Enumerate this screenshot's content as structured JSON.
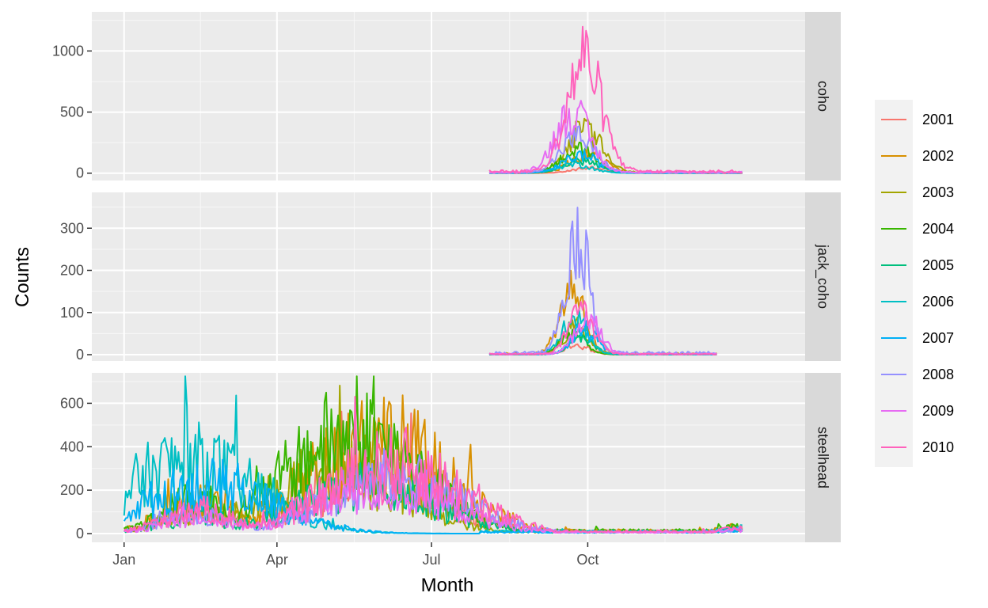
{
  "chart_data": {
    "type": "line",
    "xlabel": "Month",
    "ylabel": "Counts",
    "x_ticks": [
      {
        "label": "Jan",
        "day": 1
      },
      {
        "label": "Apr",
        "day": 91
      },
      {
        "label": "Jul",
        "day": 182
      },
      {
        "label": "Oct",
        "day": 274
      }
    ],
    "xlim_day": [
      -18,
      402
    ],
    "legend": {
      "placement": "right",
      "entries": [
        "2001",
        "2002",
        "2003",
        "2004",
        "2005",
        "2006",
        "2007",
        "2008",
        "2009",
        "2010"
      ],
      "colors": [
        "#F8766D",
        "#D89000",
        "#A3A500",
        "#39B600",
        "#00BF7D",
        "#00BFC4",
        "#00B0F6",
        "#9590FF",
        "#E76BF3",
        "#FF62BC"
      ]
    },
    "grid": true,
    "panels": [
      {
        "name": "coho",
        "ylim": [
          -60,
          1320
        ],
        "y_ticks": [
          0,
          500,
          1000
        ],
        "season": [
          216,
          365
        ],
        "peaks": [
          {
            "year": "2001",
            "day": 276,
            "height": 60
          },
          {
            "year": "2002",
            "day": 274,
            "height": 220
          },
          {
            "year": "2003",
            "day": 272,
            "height": 480
          },
          {
            "year": "2004",
            "day": 268,
            "height": 260
          },
          {
            "year": "2005",
            "day": 270,
            "height": 140
          },
          {
            "year": "2006",
            "day": 266,
            "height": 100
          },
          {
            "year": "2007",
            "day": 270,
            "height": 200
          },
          {
            "year": "2008",
            "day": 268,
            "height": 400
          },
          {
            "year": "2009",
            "day": 265,
            "height": 680
          },
          {
            "year": "2010",
            "day": 272,
            "height": 1270
          }
        ]
      },
      {
        "name": "jack_coho",
        "ylim": [
          -15,
          385
        ],
        "y_ticks": [
          0,
          100,
          200,
          300
        ],
        "season": [
          216,
          350
        ],
        "peaks": [
          {
            "year": "2001",
            "day": 268,
            "height": 30
          },
          {
            "year": "2002",
            "day": 265,
            "height": 220
          },
          {
            "year": "2003",
            "day": 267,
            "height": 90
          },
          {
            "year": "2004",
            "day": 265,
            "height": 70
          },
          {
            "year": "2005",
            "day": 270,
            "height": 50
          },
          {
            "year": "2006",
            "day": 266,
            "height": 130
          },
          {
            "year": "2007",
            "day": 272,
            "height": 80
          },
          {
            "year": "2008",
            "day": 268,
            "height": 380
          },
          {
            "year": "2009",
            "day": 274,
            "height": 130
          },
          {
            "year": "2010",
            "day": 270,
            "height": 150
          }
        ]
      },
      {
        "name": "steelhead",
        "ylim": [
          -40,
          740
        ],
        "y_ticks": [
          0,
          200,
          400,
          600
        ],
        "season": [
          1,
          365
        ],
        "peaks": [
          {
            "year": "2001",
            "day": 150,
            "height": 420
          },
          {
            "year": "2002",
            "day": 150,
            "height": 700
          },
          {
            "year": "2003",
            "day": 125,
            "height": 450
          },
          {
            "year": "2004",
            "day": 135,
            "height": 710
          },
          {
            "year": "2005",
            "day": 145,
            "height": 350
          },
          {
            "year": "2006",
            "day": 40,
            "height": 520
          },
          {
            "year": "2007",
            "day": 50,
            "height": 350
          },
          {
            "year": "2008",
            "day": 160,
            "height": 400
          },
          {
            "year": "2009",
            "day": 155,
            "height": 330
          },
          {
            "year": "2010",
            "day": 160,
            "height": 500
          }
        ]
      }
    ]
  }
}
